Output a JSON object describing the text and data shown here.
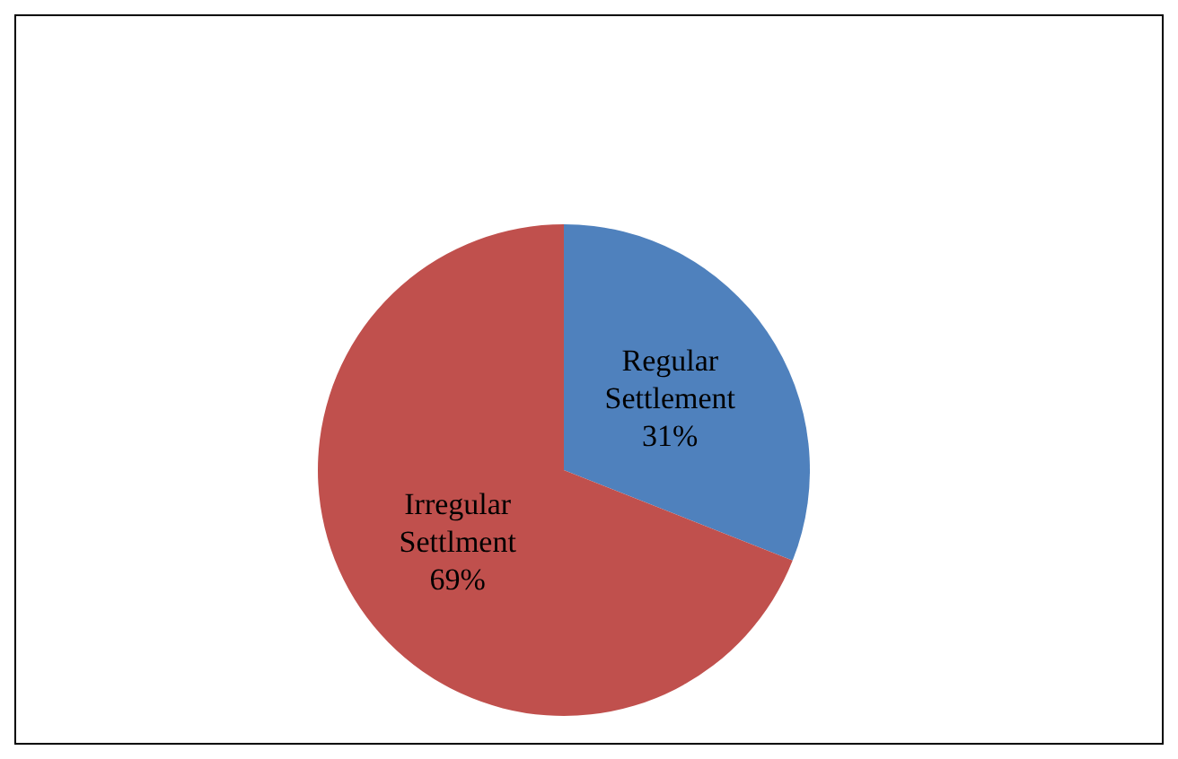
{
  "chart_data": {
    "type": "pie",
    "categories": [
      "Regular\nSettlement",
      "Irregular\nSettlment"
    ],
    "values": [
      31,
      69
    ],
    "colors": [
      "#4f81bd",
      "#c0504d"
    ],
    "value_labels": [
      "31%",
      "69%"
    ]
  }
}
